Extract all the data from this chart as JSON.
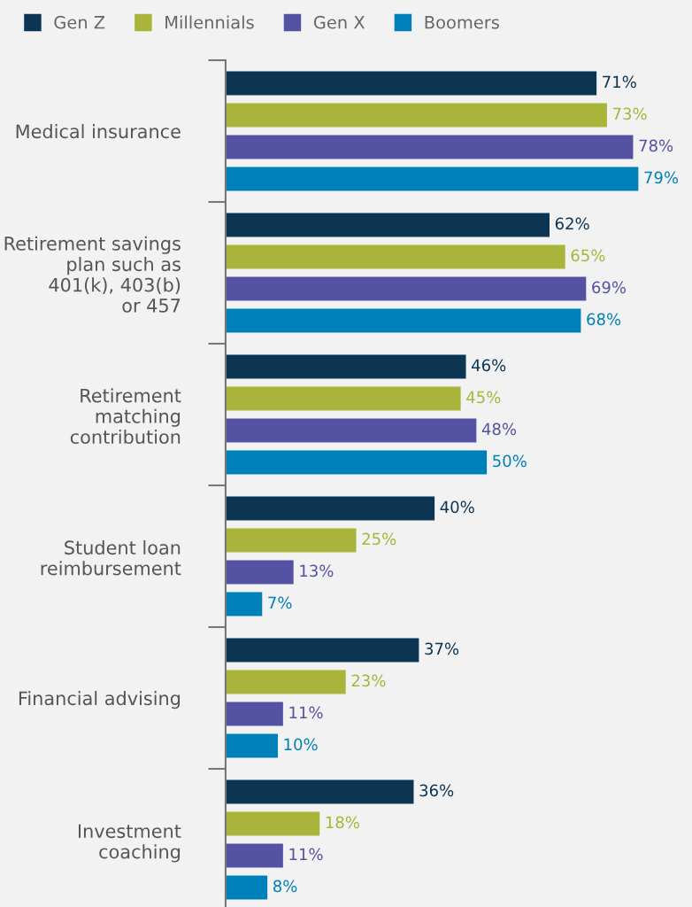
{
  "chart_data": {
    "type": "bar",
    "orientation": "horizontal",
    "legend": "top",
    "grid": false,
    "categories": [
      "Medical insurance",
      "Retirement savings\nplan such as\n401(k), 403(b)\nor 457",
      "Retirement\nmatching\ncontribution",
      "Student loan\nreimbursement",
      "Financial advising",
      "Investment\ncoaching"
    ],
    "series": [
      {
        "name": "Gen Z",
        "color": "#0b3553",
        "values": [
          71,
          62,
          46,
          40,
          37,
          36
        ],
        "value_labels": [
          "71%",
          "62%",
          "46%",
          "40%",
          "37%",
          "36%"
        ]
      },
      {
        "name": "Millennials",
        "color": "#a8b43a",
        "values": [
          73,
          65,
          45,
          25,
          23,
          18
        ],
        "value_labels": [
          "73%",
          "65%",
          "45%",
          "25%",
          "23%",
          "18%"
        ]
      },
      {
        "name": "Gen X",
        "color": "#5552a3",
        "values": [
          78,
          69,
          48,
          13,
          11,
          11
        ],
        "value_labels": [
          "78%",
          "69%",
          "48%",
          "13%",
          "11%",
          "11%"
        ]
      },
      {
        "name": "Boomers",
        "color": "#0080b8",
        "values": [
          79,
          68,
          50,
          7,
          10,
          8
        ],
        "value_labels": [
          "79%",
          "68%",
          "50%",
          "7%",
          "10%",
          "8%"
        ]
      }
    ]
  }
}
